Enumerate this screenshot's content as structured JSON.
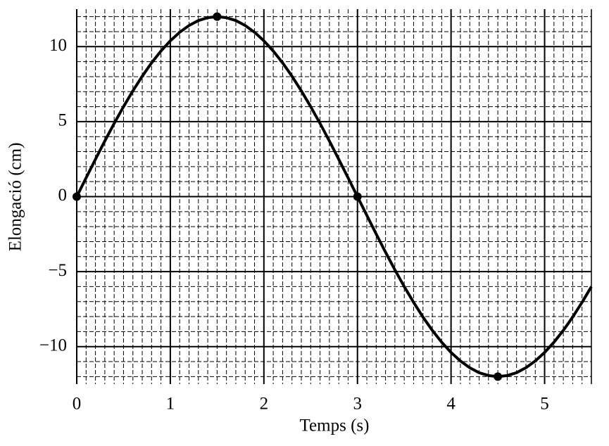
{
  "chart_data": {
    "type": "line",
    "xlabel": "Temps (s)",
    "ylabel": "Elongació (cm)",
    "xlim": [
      0,
      5.5
    ],
    "ylim": [
      -12.5,
      12.5
    ],
    "xticks": [
      0,
      1,
      2,
      3,
      4,
      5
    ],
    "yticks": [
      {
        "value": -10,
        "label": "−10"
      },
      {
        "value": -5,
        "label": "−5"
      },
      0,
      5,
      10
    ],
    "grid": true,
    "minor_divisions": [
      10,
      5
    ],
    "series": [
      {
        "style": "line",
        "color": "#000000",
        "x": [
          0,
          0.1,
          0.2,
          0.3,
          0.4,
          0.5,
          0.6,
          0.7,
          0.8,
          0.9,
          1,
          1.1,
          1.2,
          1.3,
          1.4,
          1.5,
          1.6,
          1.7,
          1.8,
          1.9,
          2,
          2.1,
          2.2,
          2.3,
          2.4,
          2.5,
          2.6,
          2.7,
          2.8,
          2.9,
          3,
          3.1,
          3.2,
          3.3,
          3.4,
          3.5,
          3.6,
          3.7,
          3.8,
          3.9,
          4,
          4.1,
          4.2,
          4.3,
          4.4,
          4.5,
          4.6,
          4.7,
          4.8,
          4.9,
          5,
          5.1,
          5.2,
          5.3,
          5.4,
          5.5
        ],
        "values": [
          0,
          1.25,
          2.49,
          3.71,
          4.88,
          6,
          7.05,
          8.03,
          8.92,
          9.71,
          10.39,
          10.96,
          11.41,
          11.74,
          11.93,
          12,
          11.93,
          11.74,
          11.41,
          10.96,
          10.39,
          9.71,
          8.92,
          8.03,
          7.05,
          6,
          4.88,
          3.71,
          2.49,
          1.25,
          0,
          -1.25,
          -2.49,
          -3.71,
          -4.88,
          -6,
          -7.05,
          -8.03,
          -8.92,
          -9.71,
          -10.39,
          -10.96,
          -11.41,
          -11.74,
          -11.93,
          -12,
          -11.93,
          -11.74,
          -11.41,
          -10.96,
          -10.39,
          -9.71,
          -8.92,
          -8.03,
          -7.05,
          -6
        ]
      },
      {
        "style": "markers",
        "color": "#000000",
        "x": [
          0,
          1.5,
          3,
          4.5
        ],
        "values": [
          0,
          12,
          0,
          -12
        ]
      }
    ]
  }
}
